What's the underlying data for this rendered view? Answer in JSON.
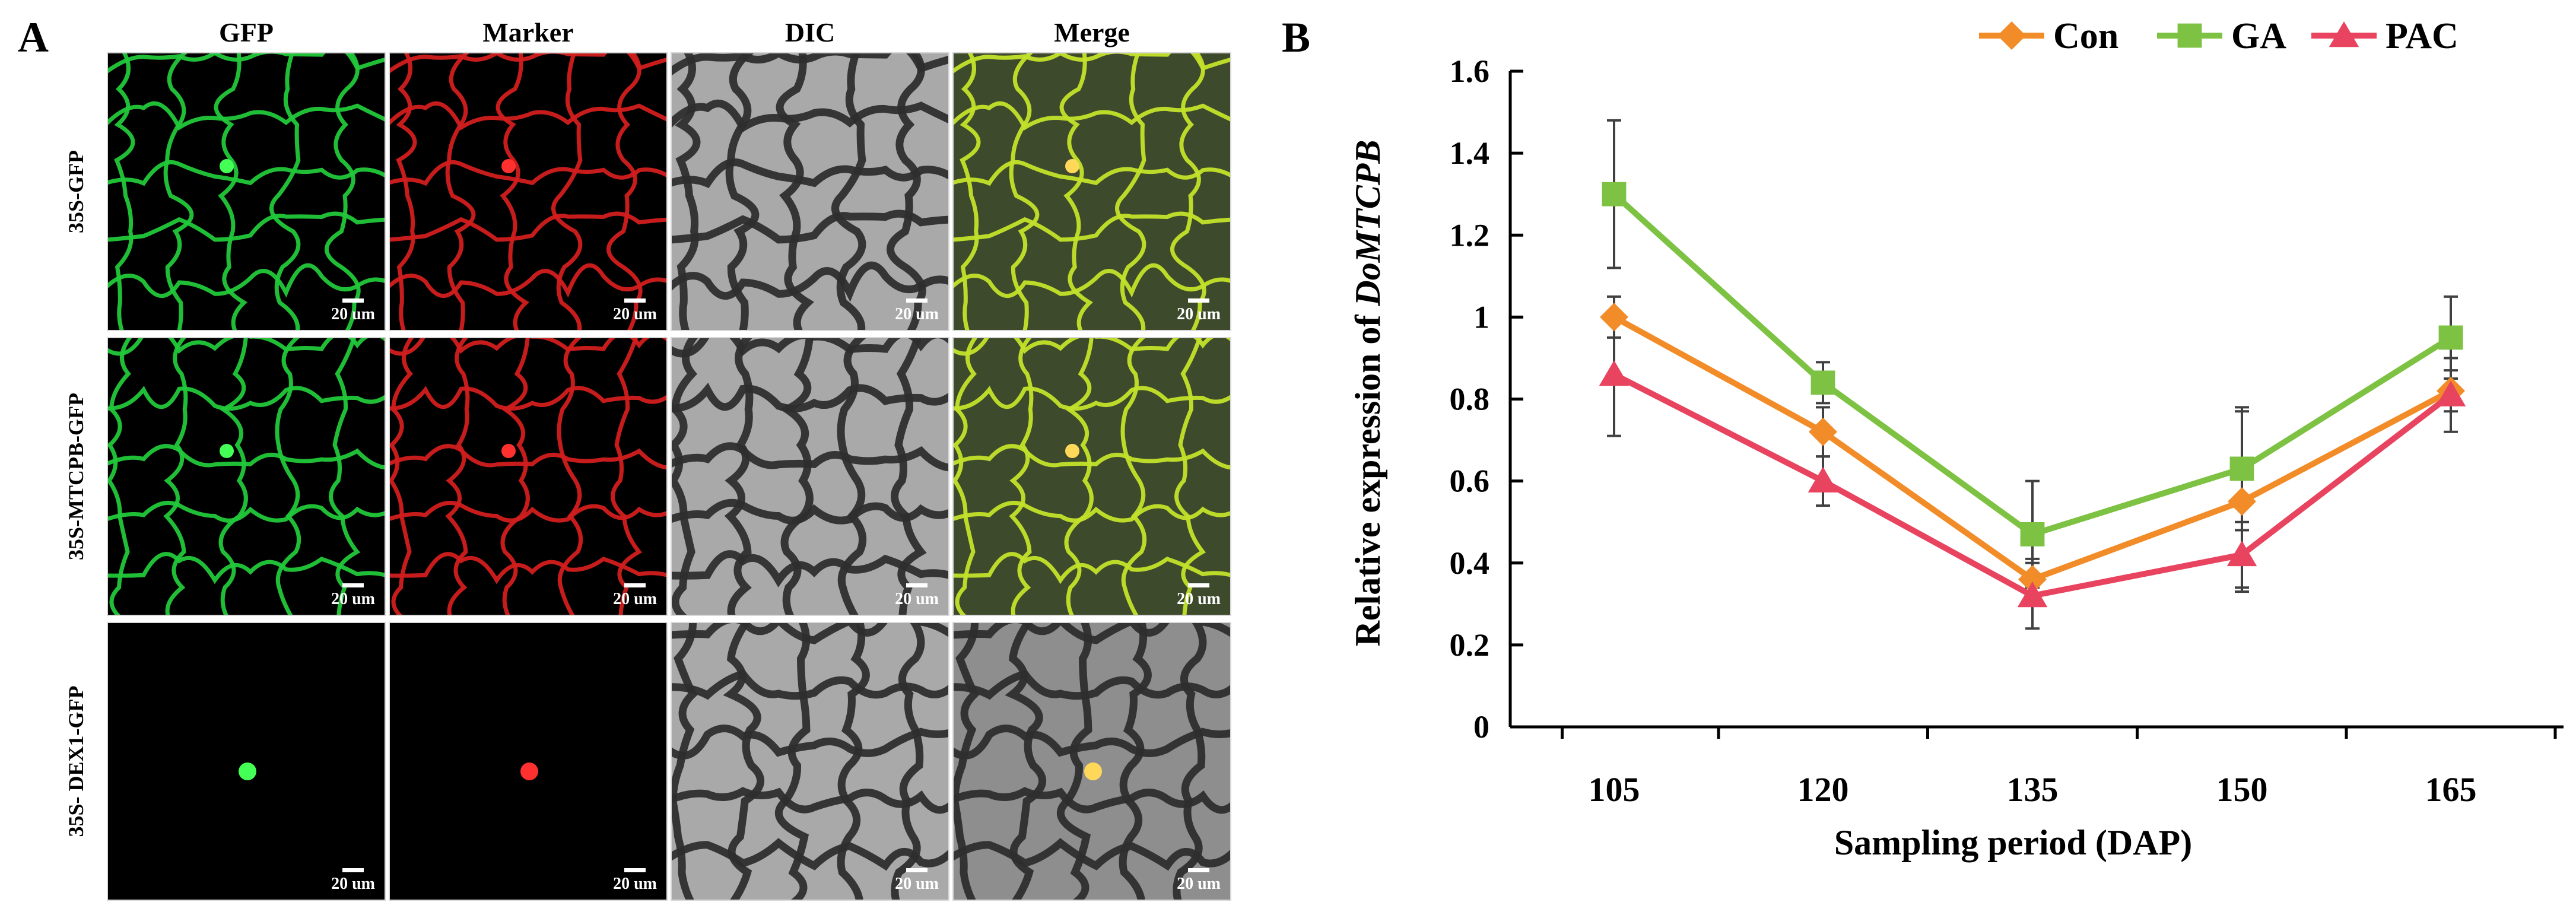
{
  "panel_a": {
    "label": "A",
    "columns": [
      "GFP",
      "Marker",
      "DIC",
      "Merge"
    ],
    "rows": [
      "35S-GFP",
      "35S-MTCPB-GFP",
      "35S- DEX1-GFP"
    ],
    "scale_bar_label": "20 um",
    "column_styles": [
      "gfp",
      "marker",
      "dic",
      "merge"
    ],
    "row_patterns": [
      "cytoplasm",
      "cytoplasm",
      "nucleus"
    ]
  },
  "panel_b": {
    "label": "B",
    "chart_data": {
      "type": "line",
      "x": [
        105,
        120,
        135,
        150,
        165
      ],
      "xlabel": "Sampling period (DAP)",
      "ylabel_prefix": "Relative expression of ",
      "ylabel_gene": "DoMTCPB",
      "ylim": [
        0,
        1.6
      ],
      "yticks": [
        0,
        0.2,
        0.4,
        0.6,
        0.8,
        1,
        1.2,
        1.4,
        1.6
      ],
      "ytick_labels": [
        "0",
        "0.2",
        "0.4",
        "0.6",
        "0.8",
        "1",
        "1.2",
        "1.4",
        "1.6"
      ],
      "legend_position": "top",
      "series": [
        {
          "name": "Con",
          "color": "#F28C28",
          "marker": "diamond",
          "values": [
            1.0,
            0.72,
            0.36,
            0.55,
            0.82
          ],
          "errors": [
            0.05,
            0.06,
            0.05,
            0.22,
            0.05
          ]
        },
        {
          "name": "GA",
          "color": "#7DC242",
          "marker": "square",
          "values": [
            1.3,
            0.84,
            0.47,
            0.63,
            0.95
          ],
          "errors": [
            0.18,
            0.05,
            0.13,
            0.15,
            0.1
          ]
        },
        {
          "name": "PAC",
          "color": "#E8435F",
          "marker": "triangle",
          "values": [
            0.86,
            0.6,
            0.32,
            0.42,
            0.81
          ],
          "errors": [
            0.15,
            0.06,
            0.08,
            0.08,
            0.09
          ]
        }
      ]
    }
  }
}
